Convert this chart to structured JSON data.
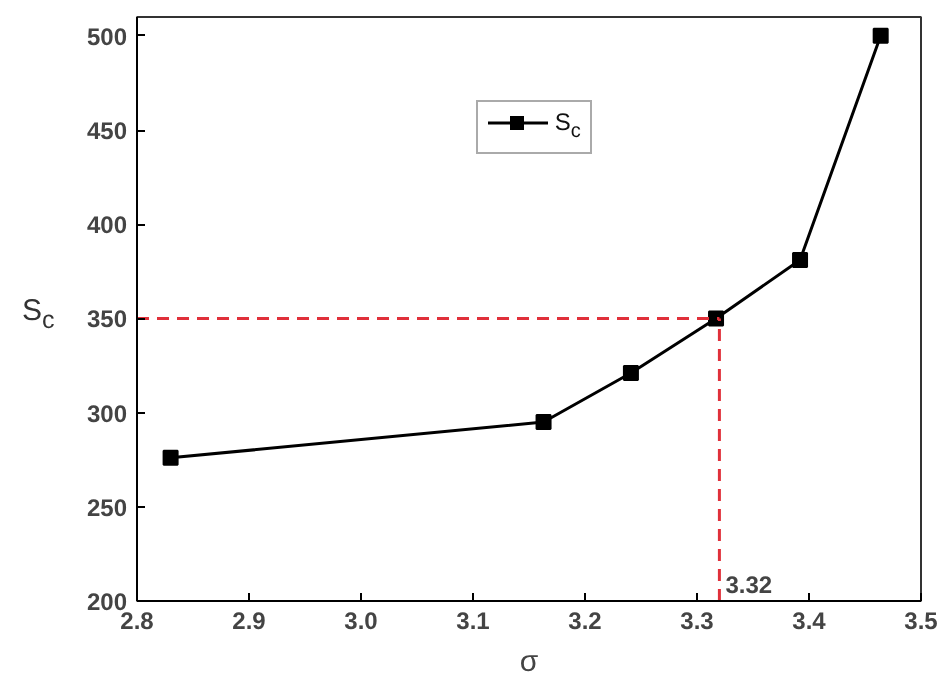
{
  "chart_data": {
    "type": "line",
    "xlabel": "σ",
    "ylabel": "S$_{c}$",
    "x": [
      2.83,
      3.163,
      3.241,
      3.317,
      3.392,
      3.464
    ],
    "series": [
      {
        "name": "S$_{c}$",
        "color": "#000000",
        "values": [
          276,
          295,
          321,
          350,
          381,
          500
        ]
      }
    ],
    "xlim": [
      2.8,
      3.5
    ],
    "xticks": [
      {
        "value": 2.8,
        "label": "2.8"
      },
      {
        "value": 2.9,
        "label": "2.9"
      },
      {
        "value": 3.0,
        "label": "3.0"
      },
      {
        "value": 3.1,
        "label": "3.1"
      },
      {
        "value": 3.2,
        "label": "3.2"
      },
      {
        "value": 3.3,
        "label": "3.3"
      },
      {
        "value": 3.4,
        "label": "3.4"
      },
      {
        "value": 3.5,
        "label": "3.5"
      }
    ],
    "ylim": [
      200,
      510
    ],
    "yticks": [
      200,
      250,
      300,
      350,
      400,
      450,
      500
    ],
    "ref_lines": [
      {
        "axis": "x",
        "value": 3.32,
        "label": "3.32",
        "color": "#e0303a",
        "line_style": "dashed"
      },
      {
        "axis": "y",
        "value": 350,
        "color": "#e0303a",
        "line_style": "dashed"
      }
    ],
    "marker": "square",
    "line_style": "solid",
    "legend": "top",
    "grid": false
  }
}
